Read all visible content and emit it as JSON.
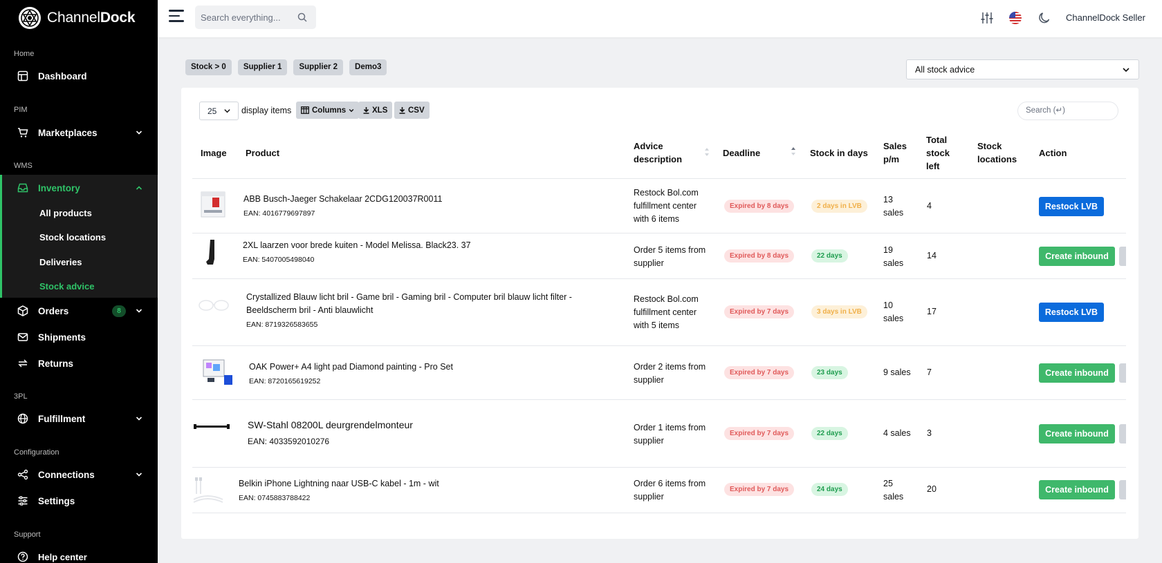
{
  "brand": {
    "name_light": "Channel",
    "name_bold": "Dock"
  },
  "sidebar": {
    "sections": [
      {
        "label": "Home"
      },
      {
        "label": "PIM"
      },
      {
        "label": "WMS"
      },
      {
        "label": "3PL"
      },
      {
        "label": "Configuration"
      },
      {
        "label": "Support"
      }
    ],
    "items": {
      "dashboard": "Dashboard",
      "marketplaces": "Marketplaces",
      "inventory": "Inventory",
      "orders": "Orders",
      "orders_badge": "8",
      "shipments": "Shipments",
      "returns": "Returns",
      "fulfillment": "Fulfillment",
      "connections": "Connections",
      "settings": "Settings",
      "help": "Help center"
    },
    "inventory_sub": [
      "All products",
      "Stock locations",
      "Deliveries",
      "Stock advice"
    ],
    "active_sub": "Stock advice",
    "accent": "#2fc368"
  },
  "topbar": {
    "search_placeholder": "Search everything...",
    "user": "ChannelDock Seller",
    "icons": [
      "sliders-icon",
      "us-flag-icon",
      "moon-icon"
    ]
  },
  "filters": {
    "chips": [
      "Stock > 0",
      "Supplier 1",
      "Supplier 2",
      "Demo3"
    ],
    "advice_select": "All stock advice"
  },
  "table_controls": {
    "per_page": "25",
    "per_page_label": "display items",
    "columns": "Columns",
    "xls": "XLS",
    "csv": "CSV",
    "search_placeholder": "Search (↵)"
  },
  "table": {
    "headers": {
      "image": "Image",
      "product": "Product",
      "advice_1": "Advice",
      "advice_2": "description",
      "deadline": "Deadline",
      "stock_days": "Stock in days",
      "sales_1": "Sales",
      "sales_2": "p/m",
      "total_1": "Total",
      "total_2": "stock",
      "total_3": "left",
      "loc_1": "Stock",
      "loc_2": "locations",
      "action": "Action"
    },
    "rows": [
      {
        "name": "ABB Busch-Jaeger Schakelaar 2CDG120037R0011",
        "ean": "EAN: 4016779697897",
        "advice": [
          "Restock Bol.com",
          "fulfillment center",
          "with 6 items"
        ],
        "deadline": "Expired by 8 days",
        "stock_days": "2 days in LVB",
        "stock_color": "amber",
        "sales": [
          "13",
          "sales"
        ],
        "total": "4",
        "action": "Restock LVB",
        "action_color": "blue"
      },
      {
        "name": "2XL laarzen voor brede kuiten - Model Melissa. Black23. 37",
        "ean": "EAN: 5407005498040",
        "advice": [
          "Order 5 items from",
          "supplier"
        ],
        "deadline": "Expired by 8 days",
        "stock_days": "22 days",
        "stock_color": "green",
        "sales": [
          "19",
          "sales"
        ],
        "total": "14",
        "action": "Create inbound",
        "action_color": "green"
      },
      {
        "name_lines": [
          "Crystallized Blauw licht bril - Game bril - Gaming bril - Computer bril blauw licht filter -",
          "Beeldscherm bril - Anti blauwlicht"
        ],
        "ean": "EAN: 8719326583655",
        "advice": [
          "Restock Bol.com",
          "fulfillment center",
          "with 5 items"
        ],
        "deadline": "Expired by 7 days",
        "stock_days": "3 days in LVB",
        "stock_color": "amber",
        "sales": [
          "10",
          "sales"
        ],
        "total": "17",
        "action": "Restock LVB",
        "action_color": "blue"
      },
      {
        "name": "OAK Power+ A4 light pad Diamond painting - Pro Set",
        "ean": "EAN: 8720165619252",
        "advice": [
          "Order 2 items from",
          "supplier"
        ],
        "deadline": "Expired by 7 days",
        "stock_days": "23 days",
        "stock_color": "green",
        "sales": [
          "9 sales"
        ],
        "total": "7",
        "action": "Create inbound",
        "action_color": "green"
      },
      {
        "name": "SW-Stahl 08200L deurgrendelmonteur",
        "ean": "EAN: 4033592010276",
        "advice": [
          "Order 1 items from",
          "supplier"
        ],
        "deadline": "Expired by 7 days",
        "stock_days": "22 days",
        "stock_color": "green",
        "sales": [
          "4 sales"
        ],
        "total": "3",
        "action": "Create inbound",
        "action_color": "green"
      },
      {
        "name": "Belkin iPhone Lightning naar USB-C kabel - 1m - wit",
        "ean": "EAN: 0745883788422",
        "advice": [
          "Order 6 items from",
          "supplier"
        ],
        "deadline": "Expired by 7 days",
        "stock_days": "24 days",
        "stock_color": "green",
        "sales": [
          "25",
          "sales"
        ],
        "total": "20",
        "action": "Create inbound",
        "action_color": "green"
      }
    ]
  }
}
